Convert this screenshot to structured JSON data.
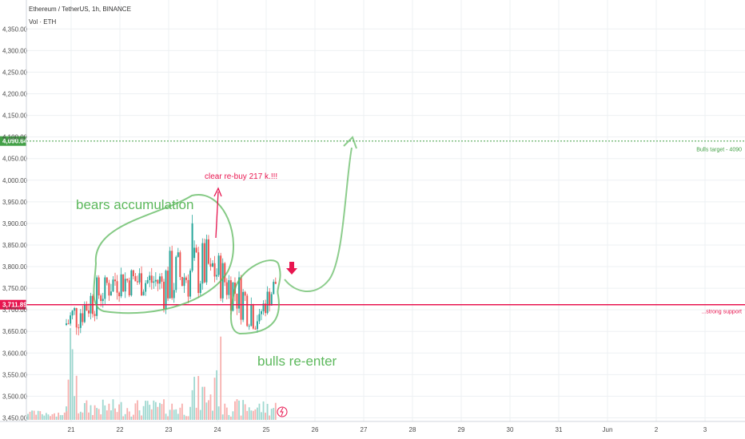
{
  "header": {
    "symbol": "Ethereum / TetherUS, 1h, BINANCE",
    "volume_label": "Vol · ETH"
  },
  "colors": {
    "up": "#26a69a",
    "down": "#ef5350",
    "vol_up": "#9fd8d0",
    "vol_down": "#f7b0ae",
    "support": "#e8154f",
    "target": "#43a047",
    "annotation_green": "#5cb85c",
    "annotation_red": "#e8154f",
    "grid": "#edf0f3"
  },
  "chart_data": {
    "type": "candlestick",
    "title": "Ethereum / TetherUS, 1h, BINANCE",
    "y_ticks": [
      "4,350.00",
      "4,300.00",
      "4,250.00",
      "4,200.00",
      "4,150.00",
      "4,100.00",
      "4,050.00",
      "4,000.00",
      "3,950.00",
      "3,900.00",
      "3,850.00",
      "3,800.00",
      "3,750.00",
      "3,700.00",
      "3,650.00",
      "3,600.00",
      "3,550.00",
      "3,500.00",
      "3,450.00"
    ],
    "ylim": [
      3430,
      4370
    ],
    "x_ticks": [
      "21",
      "22",
      "23",
      "24",
      "25",
      "26",
      "27",
      "28",
      "29",
      "30",
      "31",
      "Jun",
      "2",
      "3"
    ],
    "last_price_label": "3,711.89",
    "target_price_label": "4,090.64",
    "support_level": 3711.89,
    "target_level": 4090.64,
    "grid": true,
    "candles_daily_summary": [
      {
        "day": "21",
        "open": 3665,
        "close": 3770,
        "high": 3780,
        "low": 3600
      },
      {
        "day": "22",
        "open": 3770,
        "close": 3765,
        "high": 3815,
        "low": 3670
      },
      {
        "day": "23",
        "open": 3765,
        "close": 3800,
        "high": 3920,
        "low": 3660
      },
      {
        "day": "24",
        "open": 3800,
        "close": 3690,
        "high": 3845,
        "low": 3640
      },
      {
        "day": "25",
        "open": 3690,
        "close": 3760,
        "high": 3775,
        "low": 3665
      }
    ]
  },
  "annotations": {
    "bears": "bears accumulation",
    "bulls": "bulls re-enter",
    "rebuy": "clear re-buy 217 k.!!!",
    "target": "Bulls target - 4090",
    "support": "...strong support"
  }
}
